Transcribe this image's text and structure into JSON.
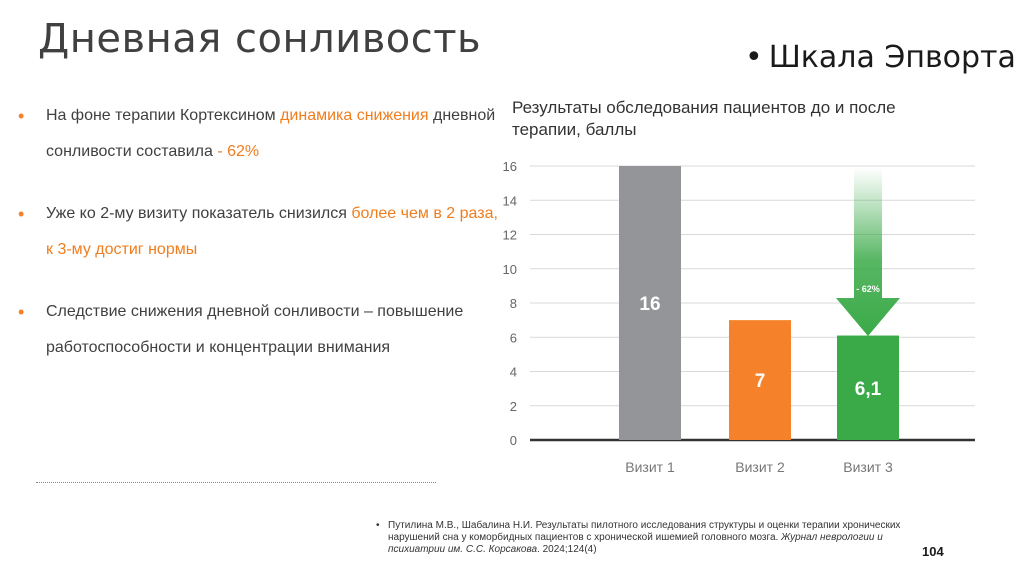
{
  "slide": {
    "title": "Дневная сонливость",
    "scale_label": "Шкала Эпворта",
    "scale_bullet": "•",
    "page_number": "104"
  },
  "bullets": [
    {
      "marker": "•",
      "text_before": "На фоне терапии Кортексином ",
      "highlight_1": "динамика снижения",
      "text_middle": " дневной сонливости составила ",
      "highlight_2": "- 62%"
    },
    {
      "marker": "•",
      "text_before": "Уже ко 2-му визиту показатель снизился ",
      "highlight_1": "более чем в 2 раза, к 3-му достиг нормы"
    },
    {
      "marker": "•",
      "text": "Следствие снижения дневной сонливости – повышение работоспособности и концентрации внимания"
    }
  ],
  "reference": {
    "marker": "•",
    "text": "Путилина М.В., Шабалина Н.И. Результаты пилотного исследования структуры и оценки терапии хронических нарушений сна у коморбидных пациентов с хронической ишемией головного мозга. ",
    "journal": "Журнал неврологии и психиатрии им. С.С. Корсакова",
    "tail": ". 2024;124(4)"
  },
  "chart_data": {
    "type": "bar",
    "title": "Результаты обследования пациентов до и после терапии, баллы",
    "categories": [
      "Визит 1",
      "Визит 2",
      "Визит 3"
    ],
    "values": [
      16,
      7,
      6.1
    ],
    "data_labels": [
      "16",
      "7",
      "6,1"
    ],
    "bar_colors": [
      "#939598",
      "#f5822a",
      "#3aaa48"
    ],
    "ylim": [
      0,
      16
    ],
    "yticks": [
      "0",
      "2",
      "4",
      "6",
      "8",
      "10",
      "12",
      "14",
      "16"
    ],
    "grid": true,
    "arrow_label": "- 62%",
    "arrow_color": "#3aaa48"
  }
}
